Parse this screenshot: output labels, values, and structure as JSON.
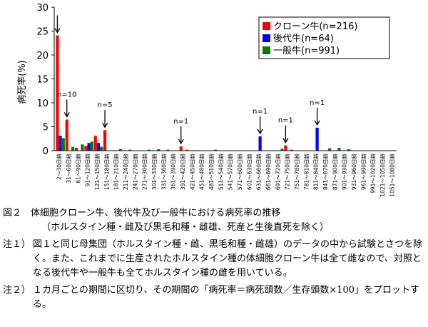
{
  "chart_data": {
    "type": "bar",
    "ylabel": "病死率(%)",
    "ylim": [
      0,
      30
    ],
    "yticks": [
      0,
      5,
      10,
      15,
      20,
      25,
      30
    ],
    "categories": [
      "2～30日齢",
      "31～60日齢",
      "61～90日齢",
      "91～120日齢",
      "121～150日齢",
      "151～180日齢",
      "181～210日齢",
      "211～240日齢",
      "241～270日齢",
      "271～300日齢",
      "301～330日齢",
      "331～360日齢",
      "361～390日齢",
      "391～420日齢",
      "421～450日齢",
      "451～480日齢",
      "481～510日齢",
      "511～540日齢",
      "541～570日齢",
      "571～600日齢",
      "601～630日齢",
      "631～660日齢",
      "661～690日齢",
      "691～720日齢",
      "721～750日齢",
      "751～780日齢",
      "781～810日齢",
      "811～840日齢",
      "841～870日齢",
      "871～900日齢",
      "901～930日齢",
      "931～960日齢",
      "961～990日齢",
      "991～1020日齢",
      "1021～1050日齢",
      "1051～1080日齢"
    ],
    "series": [
      {
        "name": "クローン牛(n=216)",
        "color": "#ff0000",
        "values": [
          24.1,
          6.5,
          0.6,
          1.0,
          3.1,
          4.3,
          0,
          0,
          0,
          0,
          0,
          0,
          0,
          0.9,
          0,
          0,
          0,
          0,
          0,
          0,
          0,
          0,
          0,
          0,
          1.1,
          0,
          0,
          0,
          0,
          0,
          0,
          0,
          0,
          0,
          0,
          0
        ]
      },
      {
        "name": "後代牛(n=64)",
        "color": "#0000ff",
        "values": [
          3.1,
          0,
          0,
          1.6,
          1.6,
          0,
          0,
          0,
          0,
          0,
          0,
          0,
          0,
          0,
          0,
          0,
          0,
          0,
          0,
          0,
          0,
          3.0,
          0,
          0,
          0,
          0,
          0,
          4.8,
          0,
          0,
          0,
          0,
          0,
          0,
          0,
          0
        ]
      },
      {
        "name": "一般牛(n=991)",
        "color": "#008000",
        "values": [
          2.6,
          0.8,
          1.3,
          1.9,
          0.8,
          0,
          0.3,
          0.2,
          0,
          0.2,
          0.3,
          0.2,
          0,
          0.2,
          0.1,
          0,
          0.2,
          0,
          0,
          0,
          0,
          0,
          0,
          0.4,
          0.2,
          0,
          0,
          0,
          0.5,
          0.6,
          0.3,
          0,
          0,
          0,
          0,
          0
        ]
      }
    ],
    "annotations": [
      {
        "text": "",
        "category_index": 0,
        "value": 24.1
      },
      {
        "text": "n=10",
        "category_index": 1,
        "value": 6.5
      },
      {
        "text": "n=5",
        "category_index": 5,
        "value": 4.3
      },
      {
        "text": "n=1",
        "category_index": 13,
        "value": 0.9
      },
      {
        "text": "n=1",
        "category_index": 21,
        "value": 3.0
      },
      {
        "text": "n=1",
        "category_index": 24,
        "value": 1.1
      },
      {
        "text": "n=1",
        "category_index": 27,
        "value": 4.8
      }
    ]
  },
  "caption": {
    "title": "図２　体細胞クローン牛、後代牛及び一般牛における病死率の推移",
    "subtitle": "（ホルスタイン種・雌及び黒毛和種・雌雄、死産と生後直死を除く）"
  },
  "notes": [
    {
      "label": "注１）",
      "text": "図１と同じ母集団（ホルスタイン種・雌、黒毛和種・雌雄）のデータの中から試験とさつを除く。また、これまでに生産されたホルスタイン種の体細胞クローン牛は全て雌なので、対照となる後代牛や一般牛も全てホルスタイン種の雌を用いている。"
    },
    {
      "label": "注２）",
      "text": "１カ月ごとの期間に区切り、その期間の「病死率＝病死頭数／生存頭数×100」をプロットする。"
    }
  ]
}
